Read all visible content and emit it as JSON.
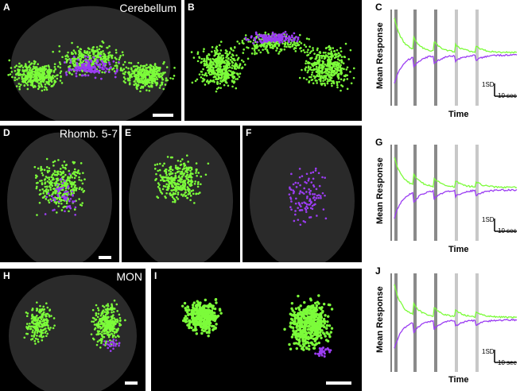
{
  "panels": {
    "A": {
      "label": "A",
      "region": "Cerebellum"
    },
    "B": {
      "label": "B"
    },
    "D": {
      "label": "D",
      "region": "Rhomb. 5-7"
    },
    "E": {
      "label": "E"
    },
    "F": {
      "label": "F"
    },
    "H": {
      "label": "H",
      "region": "MON"
    },
    "I": {
      "label": "I"
    }
  },
  "charts": [
    {
      "label": "C",
      "ylabel": "Mean Response",
      "xlabel": "Time",
      "scale_y": "1SD",
      "scale_x": "10 sec"
    },
    {
      "label": "G",
      "ylabel": "Mean Response",
      "xlabel": "Time",
      "scale_y": "1SD",
      "scale_x": "10 sec"
    },
    {
      "label": "J",
      "ylabel": "Mean Response",
      "xlabel": "Time",
      "scale_y": "1SD",
      "scale_x": "10 sec"
    }
  ],
  "colors": {
    "green": "#7CFC3A",
    "purple": "#9B3DF2",
    "stim_dark": "#8a8a8a",
    "stim_light": "#c8c8c8"
  },
  "chart_data": [
    {
      "type": "line",
      "title": "",
      "series": [
        {
          "values": [
            0.4,
            3.6,
            1.6,
            1.0,
            0.6,
            0.5,
            0.4,
            0.5,
            0.4,
            0.3,
            0.3,
            0.3,
            0.2,
            0.2,
            0.2
          ]
        },
        {
          "values": [
            -0.4,
            -3.0,
            -1.6,
            -1.3,
            -1.0,
            -0.7,
            -0.6,
            -0.5,
            -0.4,
            -0.3,
            -0.3,
            -0.3,
            -0.2,
            -0.2,
            -0.2
          ]
        }
      ],
      "stimuli": 5
    },
    {
      "type": "line",
      "title": "",
      "series": [
        {
          "values": [
            0.4,
            3.2,
            1.5,
            1.0,
            0.6,
            0.5,
            0.4,
            0.4,
            0.3,
            0.3,
            0.3,
            0.2,
            0.2,
            0.2,
            0.2
          ]
        },
        {
          "values": [
            -0.4,
            -3.0,
            -1.6,
            -1.2,
            -0.9,
            -0.7,
            -0.6,
            -0.5,
            -0.4,
            -0.3,
            -0.3,
            -0.3,
            -0.2,
            -0.2,
            -0.2
          ]
        }
      ],
      "stimuli": 5
    },
    {
      "type": "line",
      "title": "",
      "series": [
        {
          "values": [
            0.4,
            3.4,
            1.6,
            1.1,
            0.7,
            0.5,
            0.4,
            0.4,
            0.3,
            0.3,
            0.3,
            0.2,
            0.2,
            0.2,
            0.2
          ]
        },
        {
          "values": [
            -0.4,
            -3.0,
            -1.8,
            -1.3,
            -1.1,
            -0.8,
            -0.7,
            -0.6,
            -0.5,
            -0.4,
            -0.4,
            -0.3,
            -0.3,
            -0.3,
            -0.3
          ]
        }
      ],
      "stimuli": 5
    }
  ]
}
